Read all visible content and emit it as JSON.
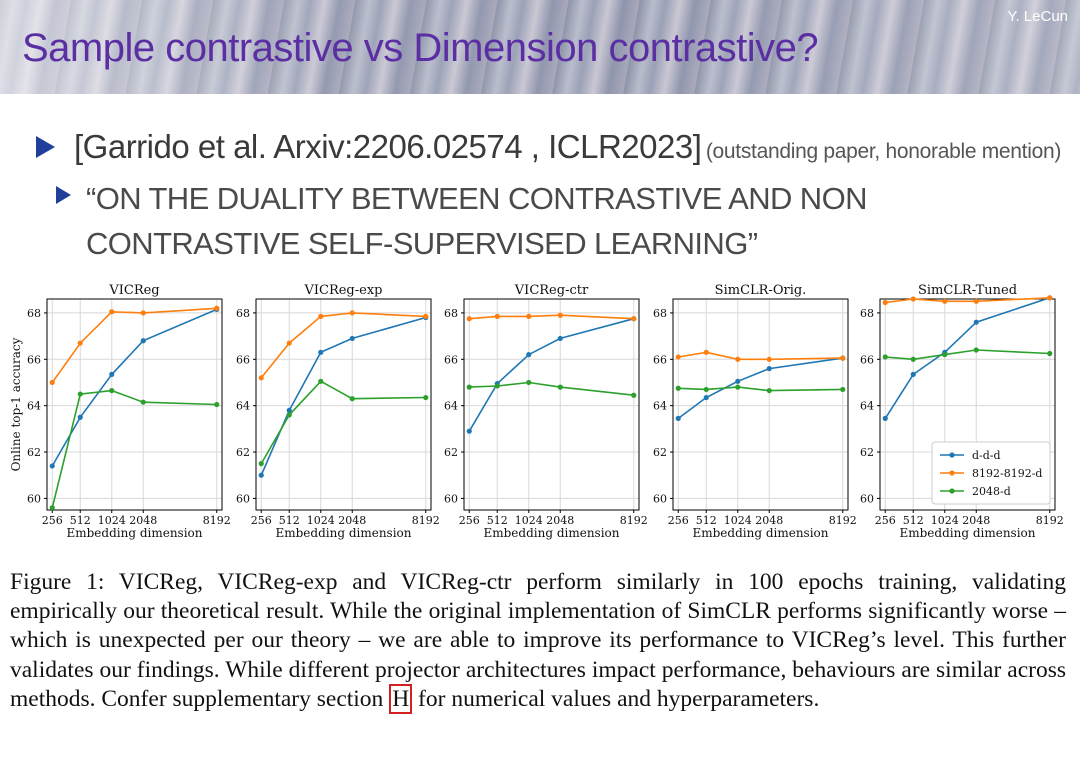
{
  "header": {
    "title": "Sample contrastive vs Dimension contrastive?",
    "author": "Y. LeCun"
  },
  "bullets": {
    "citation": "[Garrido et al. Arxiv:2206.02574 , ICLR2023]",
    "note": "(outstanding paper, honorable mention)",
    "quote_line1": "“ON THE DUALITY BETWEEN CONTRASTIVE AND NON",
    "quote_line2": "CONTRASTIVE SELF-SUPERVISED LEARNING”"
  },
  "figure": {
    "ylabel": "Online top-1 accuracy",
    "xlabel": "Embedding dimension"
  },
  "legend": [
    "d-d-d",
    "8192-8192-d",
    "2048-d"
  ],
  "colors": {
    "d-d-d": "#1f77b4",
    "8192-8192-d": "#ff7f0e",
    "2048-d": "#2ca02c"
  },
  "chart_data": [
    {
      "type": "line",
      "title": "VICReg",
      "x": [
        256,
        512,
        1024,
        2048,
        8192
      ],
      "xticks": [
        "256",
        "512",
        "1024",
        "2048",
        "8192"
      ],
      "yticks": [
        "60",
        "62",
        "64",
        "66",
        "68"
      ],
      "ylim": [
        59.5,
        68.6
      ],
      "grid": true,
      "series": [
        {
          "name": "d-d-d",
          "values": [
            61.4,
            63.5,
            65.35,
            66.8,
            68.15
          ]
        },
        {
          "name": "8192-8192-d",
          "values": [
            65.0,
            66.7,
            68.05,
            68.0,
            68.2
          ]
        },
        {
          "name": "2048-d",
          "values": [
            59.6,
            64.5,
            64.65,
            64.15,
            64.05
          ]
        }
      ]
    },
    {
      "type": "line",
      "title": "VICReg-exp",
      "x": [
        256,
        512,
        1024,
        2048,
        8192
      ],
      "xticks": [
        "256",
        "512",
        "1024",
        "2048",
        "8192"
      ],
      "yticks": [
        "60",
        "62",
        "64",
        "66",
        "68"
      ],
      "ylim": [
        59.5,
        68.6
      ],
      "grid": true,
      "series": [
        {
          "name": "d-d-d",
          "values": [
            61.0,
            63.8,
            66.3,
            66.9,
            67.8
          ]
        },
        {
          "name": "8192-8192-d",
          "values": [
            65.2,
            66.7,
            67.85,
            68.0,
            67.85
          ]
        },
        {
          "name": "2048-d",
          "values": [
            61.5,
            63.6,
            65.05,
            64.3,
            64.35
          ]
        }
      ]
    },
    {
      "type": "line",
      "title": "VICReg-ctr",
      "x": [
        256,
        512,
        1024,
        2048,
        8192
      ],
      "xticks": [
        "256",
        "512",
        "1024",
        "2048",
        "8192"
      ],
      "yticks": [
        "60",
        "62",
        "64",
        "66",
        "68"
      ],
      "ylim": [
        59.5,
        68.6
      ],
      "grid": true,
      "series": [
        {
          "name": "d-d-d",
          "values": [
            62.9,
            64.95,
            66.2,
            66.9,
            67.75
          ]
        },
        {
          "name": "8192-8192-d",
          "values": [
            67.75,
            67.85,
            67.85,
            67.9,
            67.75
          ]
        },
        {
          "name": "2048-d",
          "values": [
            64.8,
            64.85,
            65.0,
            64.8,
            64.45
          ]
        }
      ]
    },
    {
      "type": "line",
      "title": "SimCLR-Orig.",
      "x": [
        256,
        512,
        1024,
        2048,
        8192
      ],
      "xticks": [
        "256",
        "512",
        "1024",
        "2048",
        "8192"
      ],
      "yticks": [
        "60",
        "62",
        "64",
        "66",
        "68"
      ],
      "ylim": [
        59.5,
        68.6
      ],
      "grid": true,
      "series": [
        {
          "name": "d-d-d",
          "values": [
            63.45,
            64.35,
            65.05,
            65.6,
            66.05
          ]
        },
        {
          "name": "8192-8192-d",
          "values": [
            66.1,
            66.3,
            66.0,
            66.0,
            66.05
          ]
        },
        {
          "name": "2048-d",
          "values": [
            64.75,
            64.7,
            64.8,
            64.65,
            64.7
          ]
        }
      ]
    },
    {
      "type": "line",
      "title": "SimCLR-Tuned",
      "x": [
        256,
        512,
        1024,
        2048,
        8192
      ],
      "xticks": [
        "256",
        "512",
        "1024",
        "2048",
        "8192"
      ],
      "yticks": [
        "60",
        "62",
        "64",
        "66",
        "68"
      ],
      "ylim": [
        59.5,
        68.6
      ],
      "grid": true,
      "legend_position": "lower right",
      "series": [
        {
          "name": "d-d-d",
          "values": [
            63.45,
            65.35,
            66.3,
            67.6,
            68.65
          ]
        },
        {
          "name": "8192-8192-d",
          "values": [
            68.45,
            68.6,
            68.5,
            68.5,
            68.65
          ]
        },
        {
          "name": "2048-d",
          "values": [
            66.1,
            66.0,
            66.2,
            66.4,
            66.25
          ]
        }
      ]
    }
  ],
  "caption": {
    "text_before": "Figure 1: VICReg, VICReg-exp and VICReg-ctr perform similarly in 100 epochs training, validating empirically our theoretical result. While the original implementation of SimCLR performs significantly worse – which is unexpected per our theory – we are able to improve its performance to VICReg’s level. This further validates our findings. While different projector architectures impact performance, behaviours are similar across methods. Confer supplementary section ",
    "ref": "H",
    "text_after": " for numerical values and hyperparameters."
  }
}
